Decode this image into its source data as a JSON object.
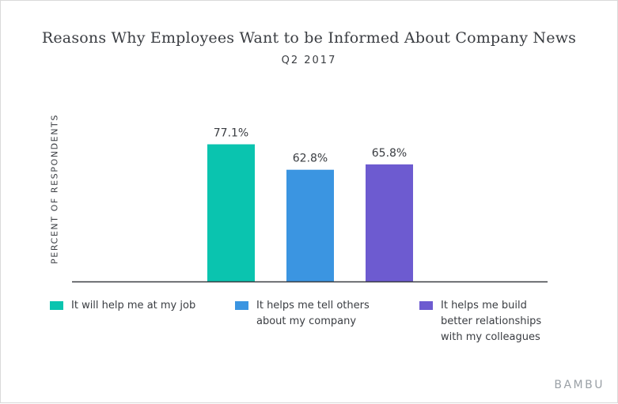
{
  "chart_data": {
    "type": "bar",
    "title": "Reasons Why Employees Want to be Informed About Company News",
    "subtitle": "Q2 2017",
    "ylabel": "PERCENT OF RESPONDENTS",
    "xlabel": "",
    "ylim": [
      0,
      100
    ],
    "grid": false,
    "legend_position": "bottom",
    "categories": [
      "It will help me at my job",
      "It helps me tell others about my company",
      "It helps me build better relationships with my colleagues"
    ],
    "legend_lines": [
      [
        "It will help me at my job"
      ],
      [
        "It helps me tell others",
        "about my company"
      ],
      [
        "It helps me build",
        "better relationships",
        "with my colleagues"
      ]
    ],
    "values": [
      77.1,
      62.8,
      65.8
    ],
    "data_labels": [
      "77.1%",
      "62.8%",
      "65.8%"
    ],
    "colors": [
      "#0ac4af",
      "#3b95e1",
      "#6d5bd0"
    ]
  },
  "brand": "BAMBU"
}
